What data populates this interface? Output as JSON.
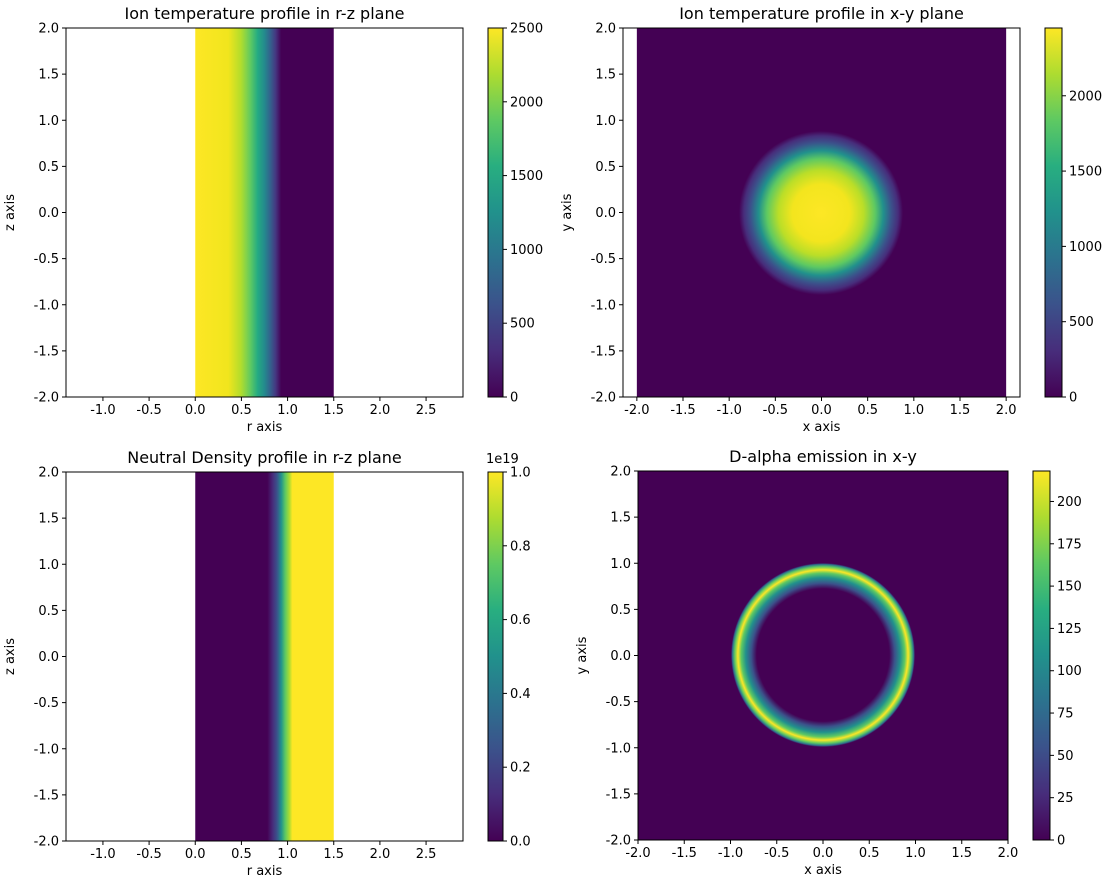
{
  "chart_data": [
    {
      "type": "heatmap",
      "title": "Ion temperature profile in r-z plane",
      "xlabel": "r axis",
      "ylabel": "z axis",
      "xlim": [
        -1.4,
        2.9
      ],
      "ylim": [
        -2.0,
        2.0
      ],
      "xticks": [
        "-1.0",
        "-0.5",
        "0.0",
        "0.5",
        "1.0",
        "1.5",
        "2.0",
        "2.5"
      ],
      "yticks": [
        "-2.0",
        "-1.5",
        "-1.0",
        "-0.5",
        "0.0",
        "0.5",
        "1.0",
        "1.5",
        "2.0"
      ],
      "data_extent": {
        "r": [
          0.0,
          1.5
        ],
        "z": [
          -2.0,
          2.0
        ]
      },
      "profile": "Ti(r) = 2500 inside core, gaussian falloff to ~0 by r=0.9",
      "colorbar": {
        "label": "",
        "range": [
          0,
          2500
        ],
        "ticks": [
          "0",
          "500",
          "1000",
          "1500",
          "2000",
          "2500"
        ],
        "offset": ""
      },
      "colormap": "viridis"
    },
    {
      "type": "heatmap",
      "title": "Ion temperature profile in x-y plane",
      "xlabel": "x axis",
      "ylabel": "y axis",
      "xlim": [
        -2.15,
        2.15
      ],
      "ylim": [
        -2.0,
        2.0
      ],
      "xticks": [
        "-2.0",
        "-1.5",
        "-1.0",
        "-0.5",
        "0.0",
        "0.5",
        "1.0",
        "1.5",
        "2.0"
      ],
      "yticks": [
        "-2.0",
        "-1.5",
        "-1.0",
        "-0.5",
        "0.0",
        "0.5",
        "1.0",
        "1.5",
        "2.0"
      ],
      "data_extent": {
        "x": [
          -2.0,
          2.0
        ],
        "y": [
          -2.0,
          2.0
        ]
      },
      "profile": "radial blob centered at (0,0), peak ~2450, falls off by r~0.9",
      "colorbar": {
        "label": "",
        "range": [
          0,
          2450
        ],
        "ticks": [
          "0",
          "500",
          "1000",
          "1500",
          "2000"
        ],
        "offset": ""
      },
      "colormap": "viridis"
    },
    {
      "type": "heatmap",
      "title": "Neutral Density profile in r-z plane",
      "xlabel": "r axis",
      "ylabel": "z axis",
      "xlim": [
        -1.4,
        2.9
      ],
      "ylim": [
        -2.0,
        2.0
      ],
      "xticks": [
        "-1.0",
        "-0.5",
        "0.0",
        "0.5",
        "1.0",
        "1.5",
        "2.0",
        "2.5"
      ],
      "yticks": [
        "-2.0",
        "-1.5",
        "-1.0",
        "-0.5",
        "0.0",
        "0.5",
        "1.0",
        "1.5",
        "2.0"
      ],
      "data_extent": {
        "r": [
          0.0,
          1.5
        ],
        "z": [
          -2.0,
          2.0
        ]
      },
      "profile": "~0 for r<0.75, rises to 1.0e19 by r~0.95, saturated to r=1.5",
      "colorbar": {
        "label": "",
        "range": [
          0,
          1.0
        ],
        "ticks": [
          "0.0",
          "0.2",
          "0.4",
          "0.6",
          "0.8",
          "1.0"
        ],
        "offset": "1e19"
      },
      "colormap": "viridis"
    },
    {
      "type": "heatmap",
      "title": "D-alpha emission in x-y",
      "xlabel": "x axis",
      "ylabel": "y axis",
      "xlim": [
        -2.0,
        2.0
      ],
      "ylim": [
        -2.0,
        2.0
      ],
      "xticks": [
        "-2.0",
        "-1.5",
        "-1.0",
        "-0.5",
        "0.0",
        "0.5",
        "1.0",
        "1.5",
        "2.0"
      ],
      "yticks": [
        "-2.0",
        "-1.5",
        "-1.0",
        "-0.5",
        "0.0",
        "0.5",
        "1.0",
        "1.5",
        "2.0"
      ],
      "data_extent": {
        "x": [
          -2.0,
          2.0
        ],
        "y": [
          -2.0,
          2.0
        ]
      },
      "profile": "thin ring of radius ~0.85 with peak ~218",
      "colorbar": {
        "label": "",
        "range": [
          0,
          218
        ],
        "ticks": [
          "0",
          "25",
          "50",
          "75",
          "100",
          "125",
          "150",
          "175",
          "200"
        ],
        "offset": ""
      },
      "colormap": "viridis"
    }
  ]
}
